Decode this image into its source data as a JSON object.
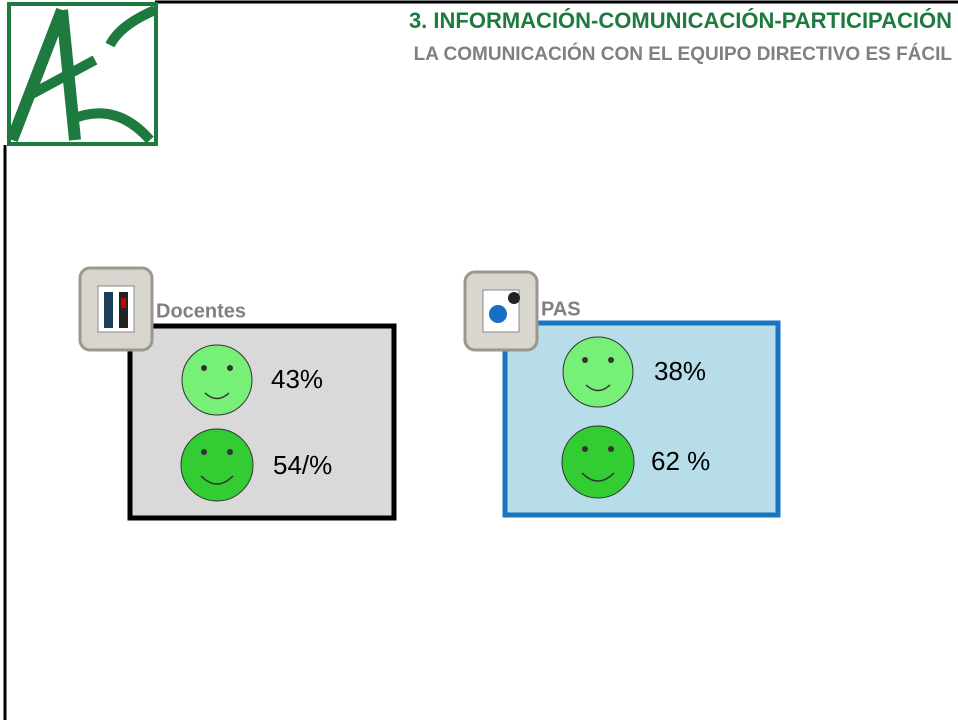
{
  "header": {
    "title": "3. INFORMACIÓN-COMUNICACIÓN-PARTICIPACIÓN",
    "subtitle": "LA COMUNICACIÓN CON EL EQUIPO DIRECTIVO ES FÁCIL"
  },
  "panels": [
    {
      "label": "Docentes",
      "items": [
        "43%",
        "54/%"
      ]
    },
    {
      "label": "PAS",
      "items": [
        "38%",
        "62 %"
      ]
    }
  ]
}
